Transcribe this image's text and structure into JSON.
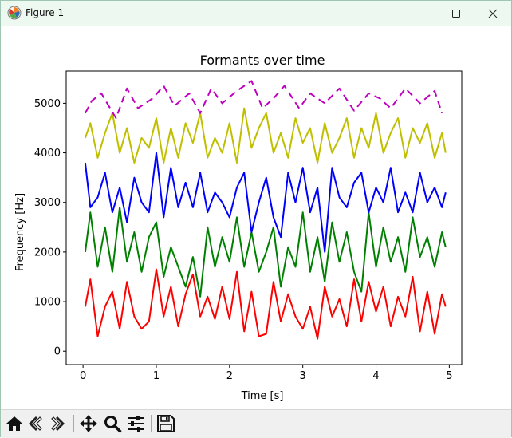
{
  "window": {
    "title": "Figure 1",
    "icons": {
      "app": "matplotlib-figure-icon",
      "minimize": "minimize-icon",
      "maximize": "maximize-icon",
      "close": "close-icon"
    }
  },
  "toolbar": {
    "buttons": [
      {
        "name": "home-button",
        "icon": "home-icon"
      },
      {
        "name": "back-button",
        "icon": "back-arrow-icon"
      },
      {
        "name": "forward-button",
        "icon": "forward-arrow-icon"
      },
      {
        "name": "pan-button",
        "icon": "move-icon"
      },
      {
        "name": "zoom-button",
        "icon": "magnifier-icon"
      },
      {
        "name": "configure-subplots-button",
        "icon": "sliders-icon"
      },
      {
        "name": "save-button",
        "icon": "floppy-disk-icon"
      }
    ]
  },
  "chart_data": {
    "type": "line",
    "title": "Formants over time",
    "xlabel": "Time [s]",
    "ylabel": "Frequency [Hz]",
    "xlim": [
      -0.23,
      5.17
    ],
    "ylim": [
      -270,
      5650
    ],
    "xticks": [
      0,
      1,
      2,
      3,
      4,
      5
    ],
    "xtick_labels": [
      "0",
      "1",
      "2",
      "3",
      "4",
      "5"
    ],
    "yticks": [
      0,
      1000,
      2000,
      3000,
      4000,
      5000
    ],
    "ytick_labels": [
      "0",
      "1000",
      "2000",
      "3000",
      "4000",
      "5000"
    ],
    "grid": false,
    "legend": "none",
    "series": [
      {
        "color": "#ff0000",
        "style": "solid",
        "x": [
          0.03,
          0.1,
          0.2,
          0.3,
          0.4,
          0.5,
          0.6,
          0.7,
          0.8,
          0.9,
          1.0,
          1.1,
          1.2,
          1.3,
          1.4,
          1.5,
          1.6,
          1.7,
          1.8,
          1.9,
          2.0,
          2.1,
          2.2,
          2.3,
          2.4,
          2.5,
          2.6,
          2.7,
          2.8,
          2.9,
          3.0,
          3.1,
          3.2,
          3.3,
          3.4,
          3.5,
          3.6,
          3.7,
          3.8,
          3.9,
          4.0,
          4.1,
          4.2,
          4.3,
          4.4,
          4.5,
          4.6,
          4.7,
          4.8,
          4.9,
          4.95
        ],
        "y": [
          900,
          1450,
          300,
          900,
          1200,
          450,
          1400,
          700,
          450,
          600,
          1650,
          700,
          1300,
          500,
          1150,
          1550,
          700,
          1100,
          650,
          1300,
          650,
          1600,
          400,
          1200,
          300,
          350,
          1400,
          600,
          1150,
          700,
          450,
          900,
          250,
          1300,
          700,
          1050,
          500,
          1450,
          600,
          1400,
          800,
          1300,
          500,
          1100,
          700,
          1500,
          400,
          1200,
          350,
          1150,
          900
        ]
      },
      {
        "color": "#008000",
        "style": "solid",
        "x": [
          0.03,
          0.1,
          0.2,
          0.3,
          0.4,
          0.5,
          0.6,
          0.7,
          0.8,
          0.9,
          1.0,
          1.1,
          1.2,
          1.3,
          1.4,
          1.5,
          1.6,
          1.7,
          1.8,
          1.9,
          2.0,
          2.1,
          2.2,
          2.3,
          2.4,
          2.5,
          2.6,
          2.7,
          2.8,
          2.9,
          3.0,
          3.1,
          3.2,
          3.3,
          3.4,
          3.5,
          3.6,
          3.7,
          3.8,
          3.9,
          4.0,
          4.1,
          4.2,
          4.3,
          4.4,
          4.5,
          4.6,
          4.7,
          4.8,
          4.9,
          4.95
        ],
        "y": [
          2000,
          2800,
          1700,
          2500,
          1600,
          2900,
          1800,
          2400,
          1600,
          2300,
          2600,
          1500,
          2100,
          1700,
          1300,
          1900,
          1100,
          2500,
          1700,
          2300,
          1800,
          2700,
          1700,
          2400,
          1600,
          2000,
          2500,
          1300,
          2100,
          1700,
          2800,
          1600,
          2300,
          1400,
          2600,
          1800,
          2400,
          1600,
          1200,
          2800,
          1700,
          2500,
          1800,
          2300,
          1600,
          2700,
          1900,
          2300,
          1700,
          2400,
          2100
        ]
      },
      {
        "color": "#0000ff",
        "style": "solid",
        "x": [
          0.03,
          0.1,
          0.2,
          0.3,
          0.4,
          0.5,
          0.6,
          0.7,
          0.8,
          0.9,
          1.0,
          1.1,
          1.2,
          1.3,
          1.4,
          1.5,
          1.6,
          1.7,
          1.8,
          1.9,
          2.0,
          2.1,
          2.2,
          2.3,
          2.4,
          2.5,
          2.6,
          2.7,
          2.8,
          2.9,
          3.0,
          3.1,
          3.2,
          3.3,
          3.4,
          3.5,
          3.6,
          3.7,
          3.8,
          3.9,
          4.0,
          4.1,
          4.2,
          4.3,
          4.4,
          4.5,
          4.6,
          4.7,
          4.8,
          4.9,
          4.95
        ],
        "y": [
          3800,
          2900,
          3100,
          3600,
          2800,
          3300,
          2600,
          3500,
          3000,
          2800,
          4000,
          2700,
          3700,
          2900,
          3400,
          2900,
          3600,
          2800,
          3200,
          3000,
          2700,
          3300,
          3600,
          2400,
          3000,
          3500,
          2700,
          2300,
          3600,
          3000,
          3700,
          2800,
          3300,
          2000,
          3700,
          3100,
          2900,
          3400,
          3600,
          2800,
          3300,
          3000,
          3700,
          2800,
          3200,
          2800,
          3600,
          3000,
          3300,
          2900,
          3200
        ]
      },
      {
        "color": "#bfbf00",
        "style": "solid",
        "x": [
          0.03,
          0.1,
          0.2,
          0.3,
          0.4,
          0.5,
          0.6,
          0.7,
          0.8,
          0.9,
          1.0,
          1.1,
          1.2,
          1.3,
          1.4,
          1.5,
          1.6,
          1.7,
          1.8,
          1.9,
          2.0,
          2.1,
          2.2,
          2.3,
          2.4,
          2.5,
          2.6,
          2.7,
          2.8,
          2.9,
          3.0,
          3.1,
          3.2,
          3.3,
          3.4,
          3.5,
          3.6,
          3.7,
          3.8,
          3.9,
          4.0,
          4.1,
          4.2,
          4.3,
          4.4,
          4.5,
          4.6,
          4.7,
          4.8,
          4.9,
          4.95
        ],
        "y": [
          4300,
          4600,
          3900,
          4400,
          4800,
          4000,
          4500,
          3800,
          4300,
          4100,
          4700,
          3800,
          4500,
          3900,
          4600,
          4200,
          4800,
          3900,
          4300,
          4000,
          4600,
          3800,
          4900,
          4100,
          4500,
          4800,
          4000,
          4400,
          3900,
          4700,
          4200,
          4500,
          3800,
          4600,
          4000,
          4300,
          4700,
          3900,
          4500,
          4100,
          4800,
          4000,
          4400,
          4700,
          3900,
          4500,
          4200,
          4600,
          3900,
          4400,
          4000
        ]
      },
      {
        "color": "#bf00bf",
        "style": "dashed",
        "x": [
          0.03,
          0.12,
          0.25,
          0.45,
          0.6,
          0.75,
          0.95,
          1.1,
          1.25,
          1.45,
          1.6,
          1.75,
          1.9,
          2.1,
          2.3,
          2.45,
          2.6,
          2.75,
          2.95,
          3.1,
          3.3,
          3.5,
          3.7,
          3.9,
          4.05,
          4.2,
          4.4,
          4.6,
          4.8,
          4.9
        ],
        "y": [
          4800,
          5050,
          5200,
          4700,
          5300,
          4900,
          5100,
          5350,
          4950,
          5200,
          4800,
          5300,
          5000,
          5250,
          5450,
          4900,
          5100,
          5350,
          4900,
          5200,
          5000,
          5300,
          4850,
          5200,
          5100,
          4900,
          5300,
          5000,
          5250,
          4800
        ]
      }
    ]
  }
}
